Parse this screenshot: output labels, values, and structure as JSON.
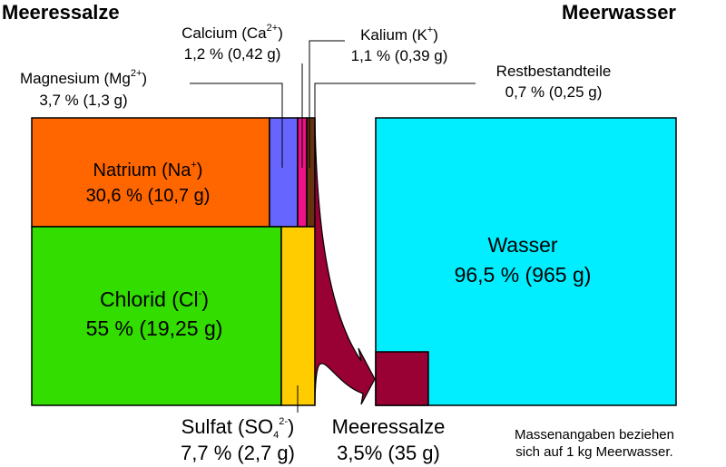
{
  "titles": {
    "left": "Meeressalze",
    "right": "Meerwasser"
  },
  "salts": {
    "natrium": {
      "name": "Natrium (Na",
      "charge": "+",
      "close": ")",
      "value": "30,6 % (10,7 g)",
      "color": "#ff6600"
    },
    "chlorid": {
      "name": "Chlorid (Cl",
      "charge": "-",
      "close": ")",
      "value": "55 % (19,25 g)",
      "color": "#33dd00"
    },
    "magnesium": {
      "name": "Magnesium (Mg",
      "charge": "2+",
      "close": ")",
      "value": "3,7 % (1,3 g)",
      "color": "#6666ff"
    },
    "calcium": {
      "name": "Calcium (Ca",
      "charge": "2+",
      "close": ")",
      "value": "1,2 % (0,42 g)",
      "color": "#ee1188"
    },
    "kalium": {
      "name": "Kalium (K",
      "charge": "+",
      "close": ")",
      "value": "1,1 % (0,39 g)",
      "color": "#ee1188"
    },
    "rest": {
      "name": "Restbestandteile",
      "value": "0,7 % (0,25 g)",
      "color": "#663311"
    },
    "sulfat": {
      "name": "Sulfat (SO",
      "sub": "4",
      "charge": "2-",
      "close": ")",
      "value": "7,7 % (2,7 g)",
      "color": "#ffcc00"
    }
  },
  "water": {
    "name": "Wasser",
    "value": "96,5 % (965 g)",
    "color": "#00eeff"
  },
  "sea_salt": {
    "name": "Meeressalze",
    "value": "3,5% (35 g)",
    "color": "#990033"
  },
  "note": {
    "line1": "Massenangaben beziehen",
    "line2": "sich auf 1 kg Meerwasser."
  }
}
